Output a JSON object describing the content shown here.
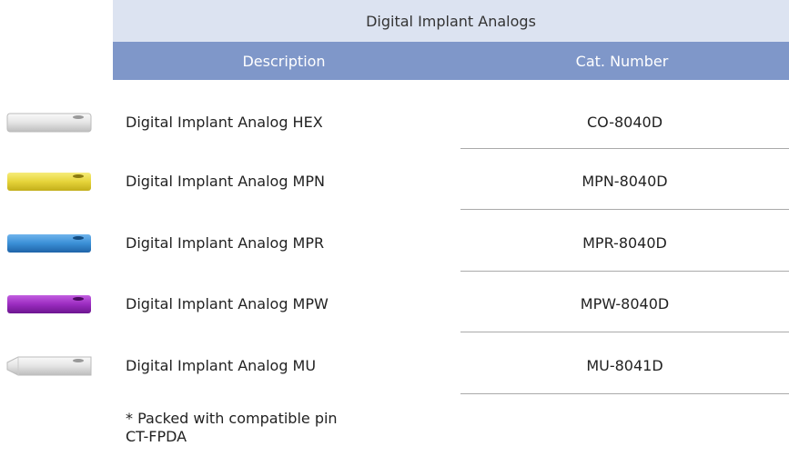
{
  "table": {
    "title": "Digital Implant Analogs",
    "header": [
      "Description",
      "Cat. Number"
    ],
    "rows": [
      [
        "Digital Implant Analog HEX",
        "CO-8040D"
      ],
      [
        "Digital Implant Analog MPN",
        "MPN-8040D"
      ],
      [
        "Digital Implant Analog MPR",
        "MPR-8040D"
      ],
      [
        "Digital Implant Analog MPW",
        "MPW-8040D"
      ],
      [
        "Digital Implant Analog MU",
        "MU-8041D"
      ]
    ],
    "footnote": [
      "* Packed with compatible pin",
      "CT-FPDA"
    ]
  }
}
